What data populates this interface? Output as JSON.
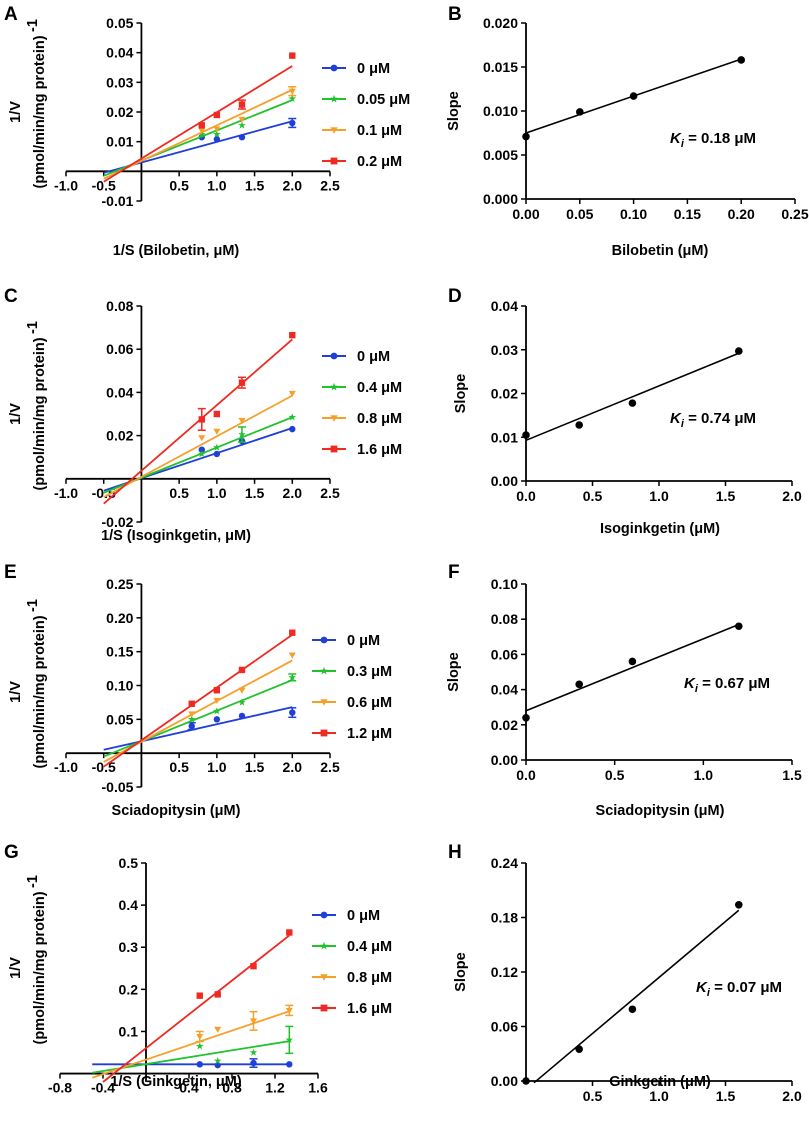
{
  "figure": {
    "background": "#ffffff",
    "colors": {
      "blue": "#1f3fd8",
      "green": "#22c22e",
      "orange": "#f5a02a",
      "red": "#ee2a22",
      "black": "#000000"
    }
  },
  "chart_data": [
    {
      "panel": "A",
      "type": "scatter",
      "xlabel": "1/S (Bilobetin, μM)",
      "ylabel_line1": "1/V",
      "ylabel_line2": "(pmol/min/mg protein)",
      "ylabel_sup": "-1",
      "xlim": [
        -1.0,
        2.5
      ],
      "ylim": [
        -0.01,
        0.05
      ],
      "xticks": [
        -1.0,
        -0.5,
        0.5,
        1.0,
        1.5,
        2.0,
        2.5
      ],
      "xtick_labels": [
        "-1.0",
        "-0.5",
        "0.5",
        "1.0",
        "1.5",
        "2.0",
        "2.5"
      ],
      "yticks": [
        -0.01,
        0.01,
        0.02,
        0.03,
        0.04,
        0.05
      ],
      "ytick_labels": [
        "-0.01",
        "0.01",
        "0.02",
        "0.03",
        "0.04",
        "0.05"
      ],
      "series": [
        {
          "name": "0 μM",
          "color": "#1f3fd8",
          "marker": "circle",
          "x": [
            0.8,
            1.0,
            1.333,
            2.0
          ],
          "y": [
            0.0115,
            0.0108,
            0.0115,
            0.0163
          ],
          "err": [
            0,
            0,
            0,
            0.0015
          ],
          "fit_x": [
            -0.5,
            2.0
          ],
          "fit_y": [
            -0.0005,
            0.0169
          ]
        },
        {
          "name": "0.05 μM",
          "color": "#22c22e",
          "marker": "star",
          "x": [
            0.8,
            1.0,
            1.333,
            2.0
          ],
          "y": [
            0.0125,
            0.0125,
            0.0155,
            0.0245
          ],
          "err": [
            0,
            0,
            0,
            0
          ],
          "fit_x": [
            -0.5,
            2.0
          ],
          "fit_y": [
            -0.0015,
            0.024
          ]
        },
        {
          "name": "0.1 μM",
          "color": "#f5a02a",
          "marker": "triangle-down",
          "x": [
            0.8,
            1.0,
            1.333,
            2.0
          ],
          "y": [
            0.0138,
            0.0143,
            0.0175,
            0.027
          ],
          "err": [
            0,
            0,
            0,
            0.0015
          ],
          "fit_x": [
            -0.5,
            2.0
          ],
          "fit_y": [
            -0.0025,
            0.0275
          ]
        },
        {
          "name": "0.2 μM",
          "color": "#ee2a22",
          "marker": "square",
          "x": [
            0.8,
            1.0,
            1.333,
            2.0
          ],
          "y": [
            0.0155,
            0.019,
            0.0225,
            0.039
          ],
          "err": [
            0,
            0,
            0.0015,
            0
          ],
          "fit_x": [
            -0.5,
            2.0
          ],
          "fit_y": [
            -0.0035,
            0.0355
          ]
        }
      ]
    },
    {
      "panel": "B",
      "type": "scatter",
      "xlabel": "Bilobetin (μM)",
      "ylabel": "Slope",
      "annotation_k": "K",
      "annotation_sub": "i",
      "annotation_rest": " = 0.18 μM",
      "xlim": [
        0.0,
        0.25
      ],
      "ylim": [
        0.0,
        0.02
      ],
      "xticks": [
        0.0,
        0.05,
        0.1,
        0.15,
        0.2,
        0.25
      ],
      "xtick_labels": [
        "0.00",
        "0.05",
        "0.10",
        "0.15",
        "0.20",
        "0.25"
      ],
      "yticks": [
        0.0,
        0.005,
        0.01,
        0.015,
        0.02
      ],
      "ytick_labels": [
        "0.000",
        "0.005",
        "0.010",
        "0.015",
        "0.020"
      ],
      "points": {
        "x": [
          0.0,
          0.05,
          0.1,
          0.2
        ],
        "y": [
          0.0071,
          0.0099,
          0.0117,
          0.0158
        ]
      },
      "fit": {
        "x": [
          0.0,
          0.2
        ],
        "y": [
          0.0075,
          0.0159
        ]
      }
    },
    {
      "panel": "C",
      "type": "scatter",
      "xlabel": "1/S (Isoginkgetin, μM)",
      "ylabel_line1": "1/V",
      "ylabel_line2": "(pmol/min/mg protein)",
      "ylabel_sup": "-1",
      "xlim": [
        -1.0,
        2.5
      ],
      "ylim": [
        -0.02,
        0.08
      ],
      "xticks": [
        -1.0,
        -0.5,
        0.5,
        1.0,
        1.5,
        2.0,
        2.5
      ],
      "xtick_labels": [
        "-1.0",
        "-0.5",
        "0.5",
        "1.0",
        "1.5",
        "2.0",
        "2.5"
      ],
      "yticks": [
        -0.02,
        0.02,
        0.04,
        0.06,
        0.08
      ],
      "ytick_labels": [
        "-0.02",
        "0.02",
        "0.04",
        "0.06",
        "0.08"
      ],
      "series": [
        {
          "name": "0 μM",
          "color": "#1f3fd8",
          "marker": "circle",
          "x": [
            0.8,
            1.0,
            1.333,
            2.0
          ],
          "y": [
            0.0135,
            0.0115,
            0.0175,
            0.023
          ],
          "err": [
            0,
            0,
            0,
            0
          ],
          "fit_x": [
            -0.5,
            2.0
          ],
          "fit_y": [
            -0.0055,
            0.0235
          ]
        },
        {
          "name": "0.4 μM",
          "color": "#22c22e",
          "marker": "star",
          "x": [
            0.8,
            1.0,
            1.333,
            2.0
          ],
          "y": [
            0.0115,
            0.0145,
            0.0205,
            0.0285
          ],
          "err": [
            0,
            0,
            0.0035,
            0
          ],
          "fit_x": [
            -0.5,
            2.0
          ],
          "fit_y": [
            -0.0065,
            0.0285
          ]
        },
        {
          "name": "0.8 μM",
          "color": "#f5a02a",
          "marker": "triangle-down",
          "x": [
            0.8,
            1.0,
            1.333,
            2.0
          ],
          "y": [
            0.019,
            0.022,
            0.027,
            0.0395
          ],
          "err": [
            0,
            0,
            0,
            0
          ],
          "fit_x": [
            -0.5,
            2.0
          ],
          "fit_y": [
            -0.0085,
            0.0385
          ]
        },
        {
          "name": "1.6 μM",
          "color": "#ee2a22",
          "marker": "square",
          "x": [
            0.8,
            1.0,
            1.333,
            2.0
          ],
          "y": [
            0.0275,
            0.03,
            0.0445,
            0.0665
          ],
          "err": [
            0.005,
            0,
            0.0025,
            0
          ],
          "fit_x": [
            -0.5,
            2.0
          ],
          "fit_y": [
            -0.0115,
            0.0645
          ]
        }
      ]
    },
    {
      "panel": "D",
      "type": "scatter",
      "xlabel": "Isoginkgetin (μM)",
      "ylabel": "Slope",
      "annotation_k": "K",
      "annotation_sub": "i",
      "annotation_rest": " = 0.74 μM",
      "xlim": [
        0.0,
        2.0
      ],
      "ylim": [
        0.0,
        0.04
      ],
      "xticks": [
        0.0,
        0.5,
        1.0,
        1.5,
        2.0
      ],
      "xtick_labels": [
        "0.0",
        "0.5",
        "1.0",
        "1.5",
        "2.0"
      ],
      "yticks": [
        0.0,
        0.01,
        0.02,
        0.03,
        0.04
      ],
      "ytick_labels": [
        "0.00",
        "0.01",
        "0.02",
        "0.03",
        "0.04"
      ],
      "points": {
        "x": [
          0.0,
          0.4,
          0.8,
          1.6
        ],
        "y": [
          0.0105,
          0.0128,
          0.0178,
          0.0297
        ]
      },
      "fit": {
        "x": [
          0.0,
          1.6
        ],
        "y": [
          0.0093,
          0.0292
        ]
      }
    },
    {
      "panel": "E",
      "type": "scatter",
      "xlabel": "Sciadopitysin (μM)",
      "ylabel_line1": "1/V",
      "ylabel_line2": "(pmol/min/mg protein)",
      "ylabel_sup": "-1",
      "xlim": [
        -1.0,
        2.5
      ],
      "ylim": [
        -0.05,
        0.25
      ],
      "xticks": [
        -1.0,
        -0.5,
        0.5,
        1.0,
        1.5,
        2.0,
        2.5
      ],
      "xtick_labels": [
        "-1.0",
        "-0.5",
        "0.5",
        "1.0",
        "1.5",
        "2.0",
        "2.5"
      ],
      "yticks": [
        -0.05,
        0.05,
        0.1,
        0.15,
        0.2,
        0.25
      ],
      "ytick_labels": [
        "-0.05",
        "0.05",
        "0.10",
        "0.15",
        "0.20",
        "0.25"
      ],
      "series": [
        {
          "name": "0 μM",
          "color": "#1f3fd8",
          "marker": "circle",
          "x": [
            0.667,
            1.0,
            1.333,
            2.0
          ],
          "y": [
            0.04,
            0.05,
            0.055,
            0.06
          ],
          "err": [
            0.005,
            0,
            0,
            0.007
          ],
          "fit_x": [
            -0.5,
            2.0
          ],
          "fit_y": [
            0.005,
            0.068
          ]
        },
        {
          "name": "0.3 μM",
          "color": "#22c22e",
          "marker": "star",
          "x": [
            0.667,
            1.0,
            1.333,
            2.0
          ],
          "y": [
            0.05,
            0.062,
            0.075,
            0.112
          ],
          "err": [
            0,
            0,
            0,
            0.005
          ],
          "fit_x": [
            -0.5,
            2.0
          ],
          "fit_y": [
            -0.005,
            0.108
          ]
        },
        {
          "name": "0.6 μM",
          "color": "#f5a02a",
          "marker": "triangle-down",
          "x": [
            0.667,
            1.0,
            1.333,
            2.0
          ],
          "y": [
            0.058,
            0.078,
            0.093,
            0.145
          ],
          "err": [
            0,
            0,
            0,
            0
          ],
          "fit_x": [
            -0.5,
            2.0
          ],
          "fit_y": [
            -0.013,
            0.137
          ]
        },
        {
          "name": "1.2 μM",
          "color": "#ee2a22",
          "marker": "square",
          "x": [
            0.667,
            1.0,
            1.333,
            2.0
          ],
          "y": [
            0.073,
            0.093,
            0.123,
            0.178
          ],
          "err": [
            0,
            0,
            0,
            0
          ],
          "fit_x": [
            -0.5,
            2.0
          ],
          "fit_y": [
            -0.02,
            0.175
          ]
        }
      ]
    },
    {
      "panel": "F",
      "type": "scatter",
      "xlabel": "Sciadopitysin (μM)",
      "ylabel": "Slope",
      "annotation_k": "K",
      "annotation_sub": "i",
      "annotation_rest": " = 0.67 μM",
      "xlim": [
        0.0,
        1.5
      ],
      "ylim": [
        0.0,
        0.1
      ],
      "xticks": [
        0.0,
        0.5,
        1.0,
        1.5
      ],
      "xtick_labels": [
        "0.0",
        "0.5",
        "1.0",
        "1.5"
      ],
      "yticks": [
        0.0,
        0.02,
        0.04,
        0.06,
        0.08,
        0.1
      ],
      "ytick_labels": [
        "0.00",
        "0.02",
        "0.04",
        "0.06",
        "0.08",
        "0.10"
      ],
      "points": {
        "x": [
          0.0,
          0.3,
          0.6,
          1.2
        ],
        "y": [
          0.024,
          0.043,
          0.056,
          0.076
        ]
      },
      "fit": {
        "x": [
          0.0,
          1.2
        ],
        "y": [
          0.028,
          0.077
        ]
      }
    },
    {
      "panel": "G",
      "type": "scatter",
      "xlabel": "1/S (Ginkgetin, μM)",
      "ylabel_line1": "1/V",
      "ylabel_line2": "(pmol/min/mg protein)",
      "ylabel_sup": "-1",
      "xlim": [
        -0.8,
        1.6
      ],
      "ylim": [
        -0.02,
        0.5
      ],
      "xticks": [
        -0.8,
        -0.4,
        0.4,
        0.8,
        1.2,
        1.6
      ],
      "xtick_labels": [
        "-0.8",
        "-0.4",
        "0.4",
        "0.8",
        "1.2",
        "1.6"
      ],
      "yticks": [
        0.1,
        0.2,
        0.3,
        0.4,
        0.5
      ],
      "ytick_labels": [
        "0.1",
        "0.2",
        "0.3",
        "0.4",
        "0.5"
      ],
      "series": [
        {
          "name": "0 μM",
          "color": "#1f3fd8",
          "marker": "circle",
          "x": [
            0.5,
            0.667,
            1.0,
            1.333
          ],
          "y": [
            0.022,
            0.02,
            0.025,
            0.022
          ],
          "err": [
            0,
            0,
            0.01,
            0
          ],
          "fit_x": [
            -0.5,
            1.333
          ],
          "fit_y": [
            0.022,
            0.022
          ]
        },
        {
          "name": "0.4 μM",
          "color": "#22c22e",
          "marker": "star",
          "x": [
            0.5,
            0.667,
            1.0,
            1.333
          ],
          "y": [
            0.065,
            0.03,
            0.05,
            0.08
          ],
          "err": [
            0,
            0,
            0,
            0.032
          ],
          "fit_x": [
            -0.5,
            1.333
          ],
          "fit_y": [
            0.002,
            0.077
          ]
        },
        {
          "name": "0.8 μM",
          "color": "#f5a02a",
          "marker": "triangle-down",
          "x": [
            0.5,
            0.667,
            1.0,
            1.333
          ],
          "y": [
            0.088,
            0.105,
            0.125,
            0.15
          ],
          "err": [
            0.012,
            0,
            0.022,
            0.012
          ],
          "fit_x": [
            -0.5,
            1.333
          ],
          "fit_y": [
            -0.01,
            0.148
          ]
        },
        {
          "name": "1.6 μM",
          "color": "#ee2a22",
          "marker": "square",
          "x": [
            0.5,
            0.667,
            1.0,
            1.333
          ],
          "y": [
            0.185,
            0.188,
            0.255,
            0.335
          ],
          "err": [
            0,
            0,
            0,
            0
          ],
          "fit_x": [
            -0.4,
            1.333
          ],
          "fit_y": [
            -0.02,
            0.328
          ]
        }
      ]
    },
    {
      "panel": "H",
      "type": "scatter",
      "xlabel": "Ginkgetin (μM)",
      "ylabel": "Slope",
      "annotation_k": "K",
      "annotation_sub": "i",
      "annotation_rest": " = 0.07 μM",
      "xlim": [
        0.0,
        2.0
      ],
      "ylim": [
        0.0,
        0.24
      ],
      "xticks": [
        0.5,
        1.0,
        1.5,
        2.0
      ],
      "xtick_labels": [
        "0.5",
        "1.0",
        "1.5",
        "2.0"
      ],
      "yticks": [
        0.0,
        0.06,
        0.12,
        0.18,
        0.24
      ],
      "ytick_labels": [
        "0.00",
        "0.06",
        "0.12",
        "0.18",
        "0.24"
      ],
      "points": {
        "x": [
          0.0,
          0.4,
          0.8,
          1.6
        ],
        "y": [
          0.0,
          0.035,
          0.079,
          0.194
        ]
      },
      "fit": {
        "x": [
          0.06,
          1.6
        ],
        "y": [
          -0.002,
          0.188
        ]
      }
    }
  ]
}
